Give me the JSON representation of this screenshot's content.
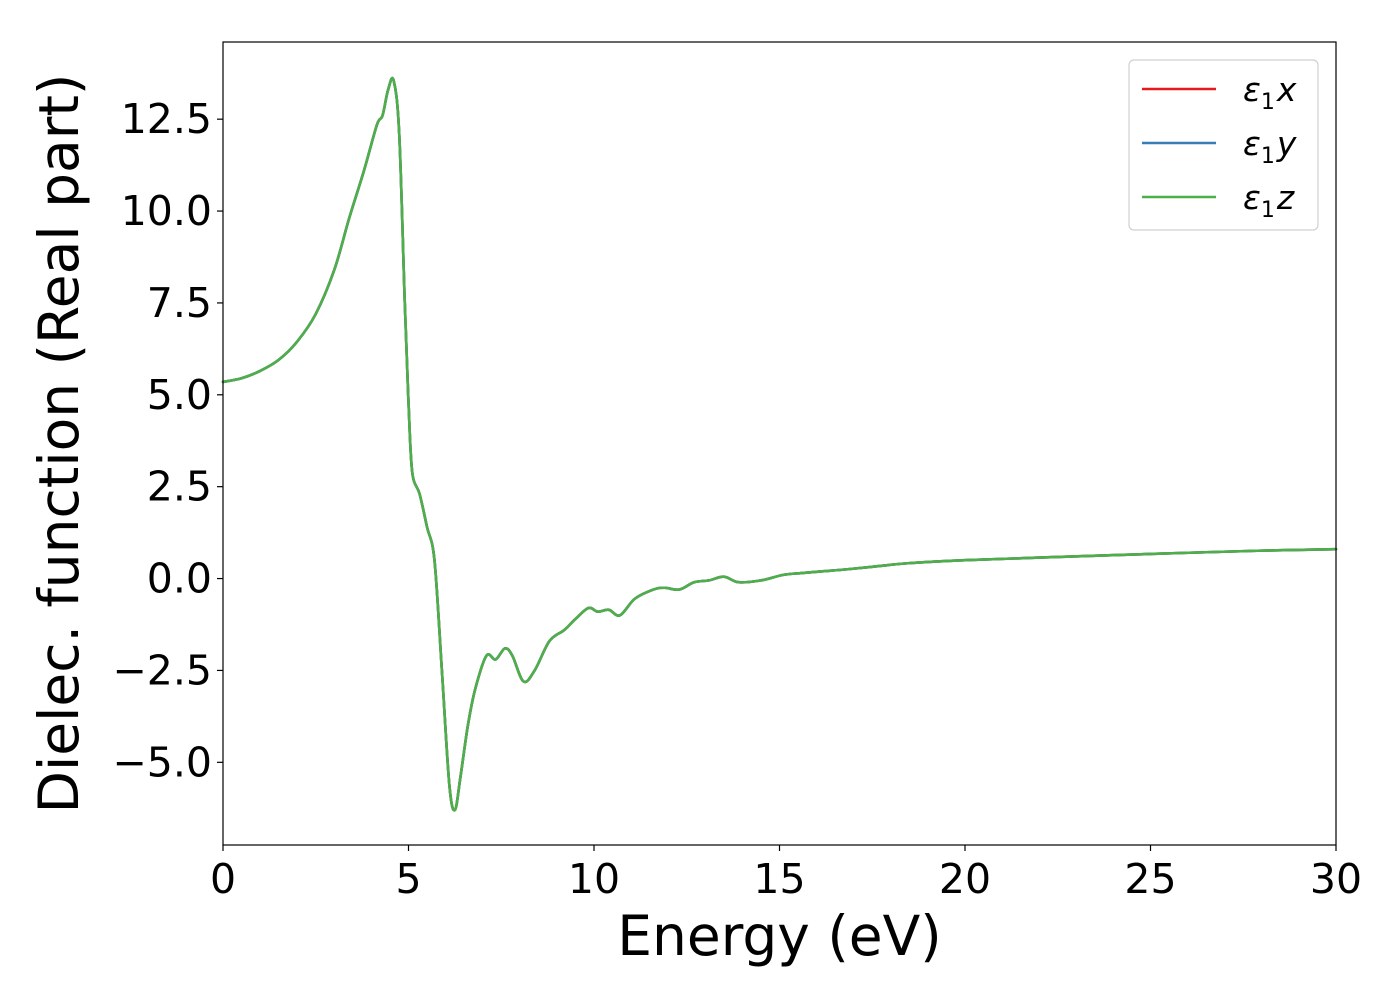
{
  "chart_data": {
    "type": "line",
    "xlabel": "Energy (eV)",
    "ylabel": "Dielec. function (Real part)",
    "xlim": [
      0,
      30
    ],
    "ylim": [
      -7.25,
      14.6
    ],
    "x_ticks": [
      0,
      5,
      10,
      15,
      20,
      25,
      30
    ],
    "x_tick_labels": [
      "0",
      "5",
      "10",
      "15",
      "20",
      "25",
      "30"
    ],
    "y_ticks": [
      -5.0,
      -2.5,
      0.0,
      2.5,
      5.0,
      7.5,
      10.0,
      12.5
    ],
    "y_tick_labels": [
      "−5.0",
      "−2.5",
      "0.0",
      "2.5",
      "5.0",
      "7.5",
      "10.0",
      "12.5"
    ],
    "grid": false,
    "legend_position": "top-right",
    "series": [
      {
        "name_main": "ε",
        "name_sub": "1",
        "name_suffix": "x",
        "color": "#e41a1c",
        "x": [
          0,
          0.5,
          1.0,
          1.5,
          2.0,
          2.5,
          3.0,
          3.4,
          3.8,
          4.15,
          4.3,
          4.45,
          4.6,
          4.75,
          4.9,
          5.0,
          5.1,
          5.3,
          5.5,
          5.7,
          5.9,
          6.1,
          6.25,
          6.4,
          6.6,
          6.8,
          7.1,
          7.35,
          7.6,
          7.8,
          8.1,
          8.4,
          8.8,
          9.2,
          9.5,
          9.85,
          10.1,
          10.4,
          10.7,
          11.1,
          11.6,
          11.9,
          12.3,
          12.7,
          13.1,
          13.5,
          13.9,
          14.5,
          15.1,
          15.6,
          16.2,
          16.8,
          17.5,
          18.5,
          20.0,
          22.0,
          25.0,
          28.0,
          30.0
        ],
        "y": [
          5.35,
          5.45,
          5.65,
          5.95,
          6.45,
          7.2,
          8.4,
          9.8,
          11.1,
          12.35,
          12.6,
          13.3,
          13.55,
          12.1,
          7.5,
          4.8,
          2.9,
          2.3,
          1.4,
          0.5,
          -2.5,
          -5.6,
          -6.3,
          -5.4,
          -4.0,
          -3.0,
          -2.1,
          -2.2,
          -1.9,
          -2.1,
          -2.8,
          -2.5,
          -1.7,
          -1.4,
          -1.1,
          -0.8,
          -0.9,
          -0.85,
          -1.0,
          -0.55,
          -0.3,
          -0.25,
          -0.3,
          -0.1,
          -0.05,
          0.05,
          -0.1,
          -0.05,
          0.1,
          0.15,
          0.2,
          0.25,
          0.32,
          0.42,
          0.5,
          0.57,
          0.67,
          0.76,
          0.8
        ]
      },
      {
        "name_main": "ε",
        "name_sub": "1",
        "name_suffix": "y",
        "color": "#377eb8",
        "x": [
          0,
          0.5,
          1.0,
          1.5,
          2.0,
          2.5,
          3.0,
          3.4,
          3.8,
          4.15,
          4.3,
          4.45,
          4.6,
          4.75,
          4.9,
          5.0,
          5.1,
          5.3,
          5.5,
          5.7,
          5.9,
          6.1,
          6.25,
          6.4,
          6.6,
          6.8,
          7.1,
          7.35,
          7.6,
          7.8,
          8.1,
          8.4,
          8.8,
          9.2,
          9.5,
          9.85,
          10.1,
          10.4,
          10.7,
          11.1,
          11.6,
          11.9,
          12.3,
          12.7,
          13.1,
          13.5,
          13.9,
          14.5,
          15.1,
          15.6,
          16.2,
          16.8,
          17.5,
          18.5,
          20.0,
          22.0,
          25.0,
          28.0,
          30.0
        ],
        "y": [
          5.35,
          5.45,
          5.65,
          5.95,
          6.45,
          7.2,
          8.4,
          9.8,
          11.1,
          12.35,
          12.6,
          13.3,
          13.55,
          12.1,
          7.5,
          4.8,
          2.9,
          2.3,
          1.4,
          0.5,
          -2.5,
          -5.6,
          -6.3,
          -5.4,
          -4.0,
          -3.0,
          -2.1,
          -2.2,
          -1.9,
          -2.1,
          -2.8,
          -2.5,
          -1.7,
          -1.4,
          -1.1,
          -0.8,
          -0.9,
          -0.85,
          -1.0,
          -0.55,
          -0.3,
          -0.25,
          -0.3,
          -0.1,
          -0.05,
          0.05,
          -0.1,
          -0.05,
          0.1,
          0.15,
          0.2,
          0.25,
          0.32,
          0.42,
          0.5,
          0.57,
          0.67,
          0.76,
          0.8
        ]
      },
      {
        "name_main": "ε",
        "name_sub": "1",
        "name_suffix": "z",
        "color": "#4daf4a",
        "x": [
          0,
          0.5,
          1.0,
          1.5,
          2.0,
          2.5,
          3.0,
          3.4,
          3.8,
          4.15,
          4.3,
          4.45,
          4.6,
          4.75,
          4.9,
          5.0,
          5.1,
          5.3,
          5.5,
          5.7,
          5.9,
          6.1,
          6.25,
          6.4,
          6.6,
          6.8,
          7.1,
          7.35,
          7.6,
          7.8,
          8.1,
          8.4,
          8.8,
          9.2,
          9.5,
          9.85,
          10.1,
          10.4,
          10.7,
          11.1,
          11.6,
          11.9,
          12.3,
          12.7,
          13.1,
          13.5,
          13.9,
          14.5,
          15.1,
          15.6,
          16.2,
          16.8,
          17.5,
          18.5,
          20.0,
          22.0,
          25.0,
          28.0,
          30.0
        ],
        "y": [
          5.35,
          5.45,
          5.65,
          5.95,
          6.45,
          7.2,
          8.4,
          9.8,
          11.1,
          12.35,
          12.6,
          13.3,
          13.55,
          12.1,
          7.5,
          4.8,
          2.9,
          2.3,
          1.4,
          0.5,
          -2.5,
          -5.6,
          -6.3,
          -5.4,
          -4.0,
          -3.0,
          -2.1,
          -2.2,
          -1.9,
          -2.1,
          -2.8,
          -2.5,
          -1.7,
          -1.4,
          -1.1,
          -0.8,
          -0.9,
          -0.85,
          -1.0,
          -0.55,
          -0.3,
          -0.25,
          -0.3,
          -0.1,
          -0.05,
          0.05,
          -0.1,
          -0.05,
          0.1,
          0.15,
          0.2,
          0.25,
          0.32,
          0.42,
          0.5,
          0.57,
          0.67,
          0.76,
          0.8
        ]
      }
    ]
  }
}
